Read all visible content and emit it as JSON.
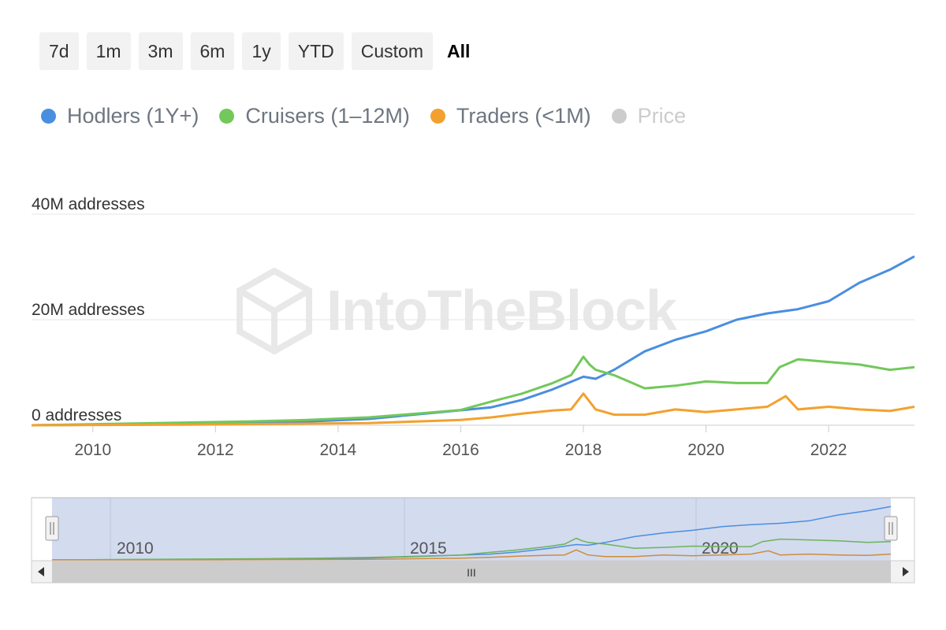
{
  "range_selector": {
    "buttons": [
      "7d",
      "1m",
      "3m",
      "6m",
      "1y",
      "YTD",
      "Custom"
    ],
    "active": "All"
  },
  "legend": [
    {
      "label": "Hodlers (1Y+)",
      "color": "#4a8ee0",
      "visible": true
    },
    {
      "label": "Cruisers (1‒12M)",
      "color": "#72c85a",
      "visible": true
    },
    {
      "label": "Traders (<1M)",
      "color": "#f2a12e",
      "visible": true
    },
    {
      "label": "Price",
      "color": "#cccccc",
      "visible": false
    }
  ],
  "watermark": {
    "text": "IntoTheBlock"
  },
  "navigator": {
    "labels": [
      "2010",
      "2015",
      "2020"
    ],
    "scrollbar_grip": "III"
  },
  "chart_data": {
    "type": "line",
    "ylabel_ticks": [
      {
        "value": 0,
        "label": "0 addresses"
      },
      {
        "value": 20000000,
        "label": "20M addresses"
      },
      {
        "value": 40000000,
        "label": "40M addresses"
      }
    ],
    "xticks": [
      "2010",
      "2012",
      "2014",
      "2016",
      "2018",
      "2020",
      "2022"
    ],
    "xlim": [
      2009.0,
      2023.4
    ],
    "ylim": [
      0,
      40000000
    ],
    "series": [
      {
        "name": "Hodlers (1Y+)",
        "color": "#4a8ee0",
        "x": [
          2009.0,
          2011.5,
          2012.5,
          2013.5,
          2014.5,
          2015.5,
          2016.5,
          2017.0,
          2017.5,
          2018.0,
          2018.2,
          2018.5,
          2019.0,
          2019.5,
          2020.0,
          2020.5,
          2021.0,
          2021.5,
          2022.0,
          2022.5,
          2023.0,
          2023.4
        ],
        "y": [
          0,
          200000,
          500000,
          700000,
          1200000,
          2300000,
          3400000,
          4800000,
          6800000,
          9200000,
          8800000,
          10500000,
          14000000,
          16200000,
          17800000,
          20000000,
          21200000,
          22000000,
          23500000,
          27000000,
          29500000,
          32000000
        ]
      },
      {
        "name": "Cruisers (1‒12M)",
        "color": "#72c85a",
        "x": [
          2009.0,
          2011.5,
          2012.5,
          2013.5,
          2014.5,
          2015.5,
          2016.0,
          2016.5,
          2017.0,
          2017.5,
          2017.8,
          2018.0,
          2018.1,
          2018.2,
          2018.5,
          2018.8,
          2019.0,
          2019.5,
          2020.0,
          2020.5,
          2021.0,
          2021.2,
          2021.5,
          2022.0,
          2022.5,
          2023.0,
          2023.4
        ],
        "y": [
          0,
          500000,
          700000,
          1000000,
          1500000,
          2400000,
          2900000,
          4500000,
          6000000,
          8000000,
          9500000,
          13000000,
          11500000,
          10500000,
          9500000,
          8000000,
          7000000,
          7500000,
          8300000,
          8000000,
          8000000,
          11000000,
          12500000,
          12000000,
          11500000,
          10500000,
          11000000
        ]
      },
      {
        "name": "Traders (<1M)",
        "color": "#f2a12e",
        "x": [
          2009.0,
          2011.5,
          2013.0,
          2014.5,
          2015.5,
          2016.0,
          2016.5,
          2017.0,
          2017.5,
          2017.8,
          2018.0,
          2018.2,
          2018.5,
          2019.0,
          2019.5,
          2020.0,
          2020.5,
          2021.0,
          2021.3,
          2021.5,
          2022.0,
          2022.5,
          2023.0,
          2023.4
        ],
        "y": [
          0,
          100000,
          250000,
          400000,
          800000,
          1000000,
          1500000,
          2200000,
          2800000,
          3000000,
          6000000,
          3000000,
          2000000,
          2000000,
          3000000,
          2500000,
          3000000,
          3500000,
          5500000,
          3000000,
          3500000,
          3000000,
          2700000,
          3500000
        ]
      }
    ]
  }
}
